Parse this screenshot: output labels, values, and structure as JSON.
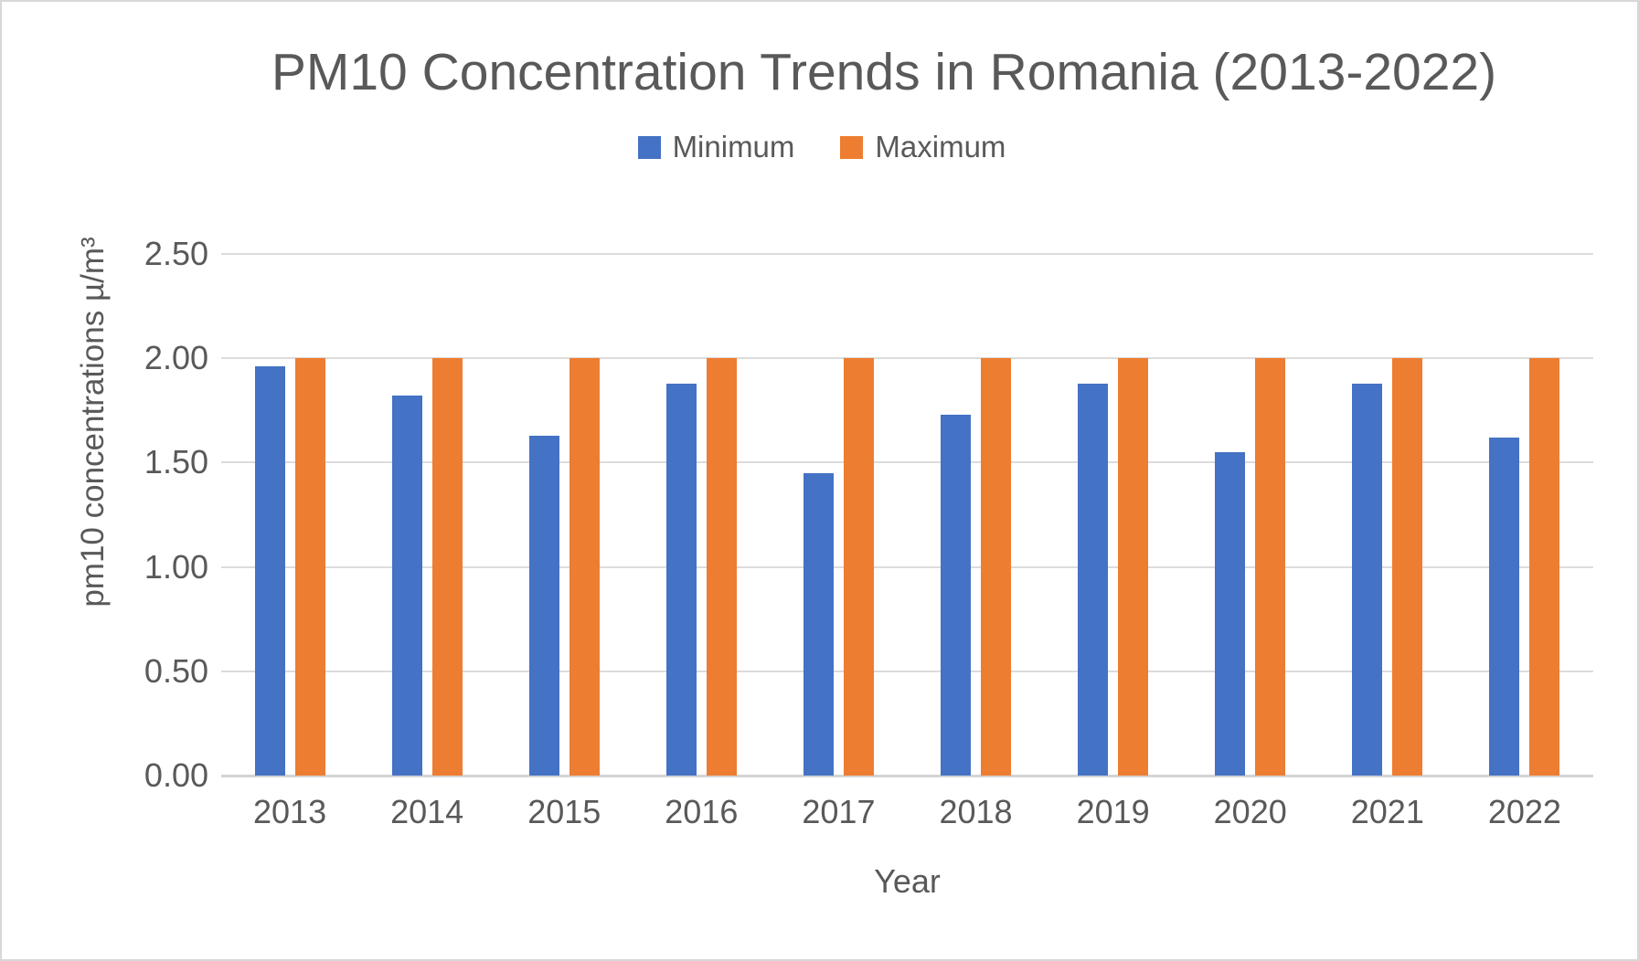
{
  "window": {
    "background": "#ffffff",
    "border_color": "#d8d8d8",
    "text_color": "#595959"
  },
  "chart_data": {
    "type": "bar",
    "title": "PM10 Concentration Trends in Romania (2013-2022)",
    "xlabel": "Year",
    "ylabel": "pm10 concentrations µ/m³",
    "categories": [
      "2013",
      "2014",
      "2015",
      "2016",
      "2017",
      "2018",
      "2019",
      "2020",
      "2021",
      "2022"
    ],
    "series": [
      {
        "name": "Minimum",
        "color": "#4472C4",
        "values": [
          1.96,
          1.82,
          1.63,
          1.88,
          1.45,
          1.73,
          1.88,
          1.55,
          1.88,
          1.62
        ]
      },
      {
        "name": "Maximum",
        "color": "#ED7D31",
        "values": [
          2.0,
          2.0,
          2.0,
          2.0,
          2.0,
          2.0,
          2.0,
          2.0,
          2.0,
          2.0
        ]
      }
    ],
    "ylim": [
      0,
      2.5
    ],
    "ytick_step": 0.5,
    "ytick_labels": [
      "0.00",
      "0.50",
      "1.00",
      "1.50",
      "2.00",
      "2.50"
    ],
    "grid": "horizontal",
    "gridline_color": "#dcdcdc",
    "legend_position": "top"
  }
}
